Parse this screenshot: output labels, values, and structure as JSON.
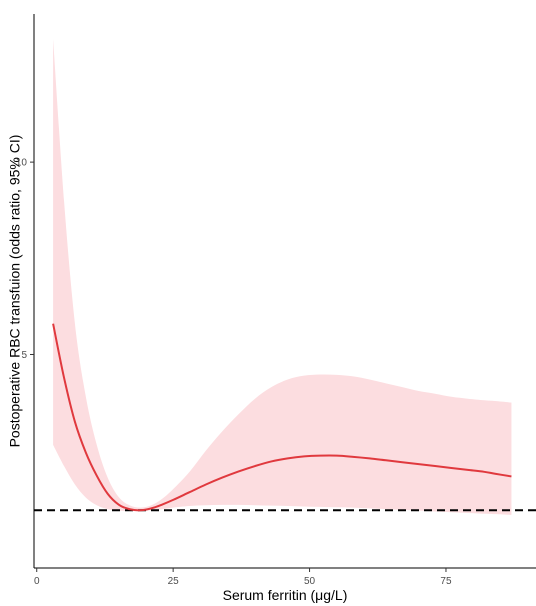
{
  "chart_data": {
    "type": "line",
    "title": "",
    "xlabel": "Serum ferritin (μg/L)",
    "ylabel": "Postoperative RBC transfuion (odds ratio, 95% CI)",
    "xlim": [
      -0.5,
      91.5
    ],
    "ylim": [
      -0.55,
      13.85
    ],
    "x_ticks": [
      0,
      25,
      50,
      75
    ],
    "y_ticks": [
      5,
      10
    ],
    "reference_line": {
      "y": 0.95,
      "style": "dashed",
      "color": "#000000"
    },
    "grid": false,
    "legend": "none",
    "colors": {
      "line": "#e0393e",
      "ci_band": "#fcdde0"
    },
    "series": [
      {
        "x": [
          3,
          5,
          7,
          9,
          11,
          13,
          15,
          17,
          19,
          21,
          23,
          25,
          28,
          31,
          34,
          37,
          40,
          43,
          46,
          49,
          52,
          55,
          58,
          61,
          64,
          67,
          70,
          73,
          76,
          79,
          82,
          84,
          87
        ],
        "y": [
          5.8,
          4.4,
          3.25,
          2.45,
          1.85,
          1.38,
          1.1,
          0.98,
          0.95,
          1.0,
          1.1,
          1.22,
          1.42,
          1.62,
          1.8,
          1.96,
          2.1,
          2.22,
          2.3,
          2.35,
          2.37,
          2.37,
          2.34,
          2.3,
          2.25,
          2.2,
          2.15,
          2.1,
          2.05,
          2.0,
          1.95,
          1.9,
          1.83
        ],
        "lower": [
          2.65,
          2.1,
          1.62,
          1.28,
          1.08,
          0.98,
          0.94,
          0.93,
          0.93,
          0.95,
          0.98,
          1.02,
          1.06,
          1.08,
          1.09,
          1.09,
          1.08,
          1.07,
          1.06,
          1.05,
          1.04,
          1.03,
          1.02,
          1.0,
          0.98,
          0.96,
          0.94,
          0.92,
          0.9,
          0.88,
          0.86,
          0.85,
          0.83
        ],
        "upper": [
          13.2,
          9.0,
          5.8,
          3.9,
          2.65,
          1.8,
          1.3,
          1.08,
          1.02,
          1.08,
          1.25,
          1.5,
          1.95,
          2.5,
          3.0,
          3.45,
          3.85,
          4.15,
          4.35,
          4.45,
          4.48,
          4.47,
          4.43,
          4.35,
          4.25,
          4.15,
          4.05,
          3.98,
          3.9,
          3.85,
          3.81,
          3.79,
          3.75
        ]
      }
    ]
  }
}
